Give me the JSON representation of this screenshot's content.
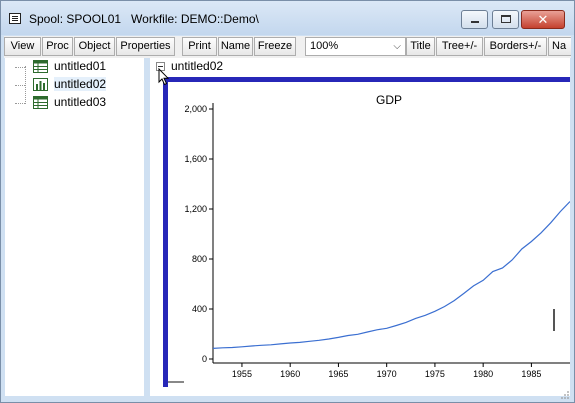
{
  "window": {
    "title": "Spool: SPOOL01   Workfile: DEMO::Demo\\",
    "minimize_icon": "minimize-icon",
    "maximize_icon": "maximize-icon",
    "close_icon": "close-icon",
    "close_glyph": "✕"
  },
  "toolbar": {
    "buttons": [
      "View",
      "Proc",
      "Object",
      "Properties",
      "Print",
      "Name",
      "Freeze",
      "Title",
      "Tree+/-",
      "Borders+/-",
      "Na"
    ],
    "zoom_value": "100%",
    "zoom_chevron": "⌵"
  },
  "tree": {
    "items": [
      {
        "label": "untitled01",
        "icon": "table-icon",
        "selected": false
      },
      {
        "label": "untitled02",
        "icon": "graph-icon",
        "selected": true
      },
      {
        "label": "untitled03",
        "icon": "table-icon",
        "selected": false
      }
    ]
  },
  "content": {
    "object_label": "untitled02"
  },
  "chart_data": {
    "type": "line",
    "title": "GDP",
    "xlabel": "",
    "ylabel": "",
    "ylim": [
      0,
      2000
    ],
    "yticks": [
      0,
      400,
      800,
      1200,
      1600,
      2000
    ],
    "ytick_labels": [
      "0",
      "400",
      "800",
      "1,200",
      "1,600",
      "2,000"
    ],
    "xticks": [
      1955,
      1960,
      1965,
      1970,
      1975,
      1980,
      1985
    ],
    "xlim": [
      1952,
      1989
    ],
    "series_color": "#3b6fd1",
    "series": [
      {
        "x": [
          1952,
          1953,
          1954,
          1955,
          1956,
          1957,
          1958,
          1959,
          1960,
          1961,
          1962,
          1963,
          1964,
          1965,
          1966,
          1967,
          1968,
          1969,
          1970,
          1971,
          1972,
          1973,
          1974,
          1975,
          1976,
          1977,
          1978,
          1979,
          1980,
          1981,
          1982,
          1983,
          1984,
          1985,
          1986,
          1987,
          1988,
          1989
        ],
        "values": [
          85,
          90,
          92,
          98,
          104,
          110,
          114,
          121,
          128,
          133,
          142,
          150,
          160,
          173,
          188,
          198,
          216,
          234,
          246,
          268,
          293,
          325,
          350,
          382,
          420,
          467,
          525,
          585,
          630,
          700,
          728,
          792,
          880,
          940,
          1010,
          1090,
          1180,
          1260
        ]
      }
    ]
  }
}
